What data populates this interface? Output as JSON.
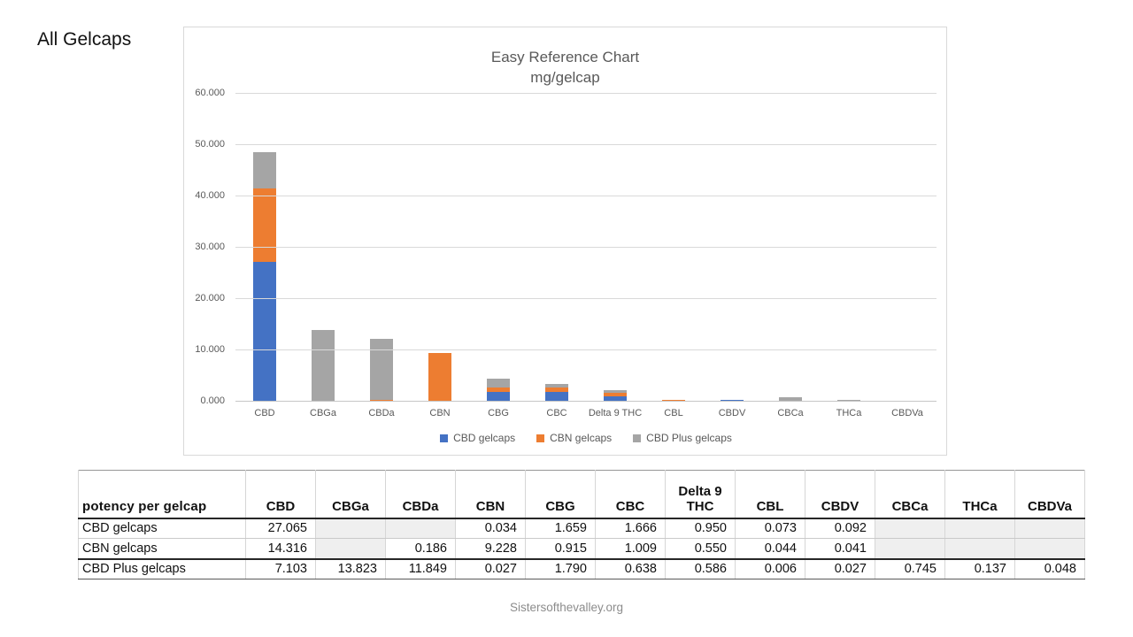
{
  "page_title": "All Gelcaps",
  "footer_text": "Sistersofthevalley.org",
  "colors": {
    "series_blue": "#4472C4",
    "series_orange": "#ED7D31",
    "series_gray": "#A5A5A5",
    "chart_text": "#595959",
    "gridline": "#D9D9D9",
    "empty_cell_shade": "#EFEFEF"
  },
  "chart_data": {
    "type": "bar",
    "stacked": true,
    "title": "Easy Reference Chart",
    "subtitle": "mg/gelcap",
    "categories": [
      "CBD",
      "CBGa",
      "CBDa",
      "CBN",
      "CBG",
      "CBC",
      "Delta 9 THC",
      "CBL",
      "CBDV",
      "CBCa",
      "THCa",
      "CBDVa"
    ],
    "series": [
      {
        "name": "CBD gelcaps",
        "color": "#4472C4",
        "values": [
          27.065,
          0,
          0,
          0.034,
          1.659,
          1.666,
          0.95,
          0.073,
          0.092,
          0,
          0,
          0
        ]
      },
      {
        "name": "CBN gelcaps",
        "color": "#ED7D31",
        "values": [
          14.316,
          0,
          0.186,
          9.228,
          0.915,
          1.009,
          0.55,
          0.044,
          0.041,
          0,
          0,
          0
        ]
      },
      {
        "name": "CBD Plus gelcaps",
        "color": "#A5A5A5",
        "values": [
          7.103,
          13.823,
          11.849,
          0.027,
          1.79,
          0.638,
          0.586,
          0.006,
          0.027,
          0.745,
          0.137,
          0.048
        ]
      }
    ],
    "ylim": [
      0,
      60
    ],
    "ytick_labels": [
      "60.000",
      "50.000",
      "40.000",
      "30.000",
      "20.000",
      "10.000",
      "0.000"
    ],
    "grid": true,
    "legend_position": "bottom"
  },
  "table": {
    "header_label": "potency per gelcap",
    "columns": [
      "CBD",
      "CBGa",
      "CBDa",
      "CBN",
      "CBG",
      "CBC",
      "Delta 9 THC",
      "CBL",
      "CBDV",
      "CBCa",
      "THCa",
      "CBDVa"
    ],
    "rows": [
      {
        "label": "CBD gelcaps",
        "values": [
          "27.065",
          "",
          "",
          "0.034",
          "1.659",
          "1.666",
          "0.950",
          "0.073",
          "0.092",
          "",
          "",
          ""
        ]
      },
      {
        "label": "CBN gelcaps",
        "values": [
          "14.316",
          "",
          "0.186",
          "9.228",
          "0.915",
          "1.009",
          "0.550",
          "0.044",
          "0.041",
          "",
          "",
          ""
        ]
      },
      {
        "label": "CBD Plus gelcaps",
        "values": [
          "7.103",
          "13.823",
          "11.849",
          "0.027",
          "1.790",
          "0.638",
          "0.586",
          "0.006",
          "0.027",
          "0.745",
          "0.137",
          "0.048"
        ]
      }
    ]
  }
}
